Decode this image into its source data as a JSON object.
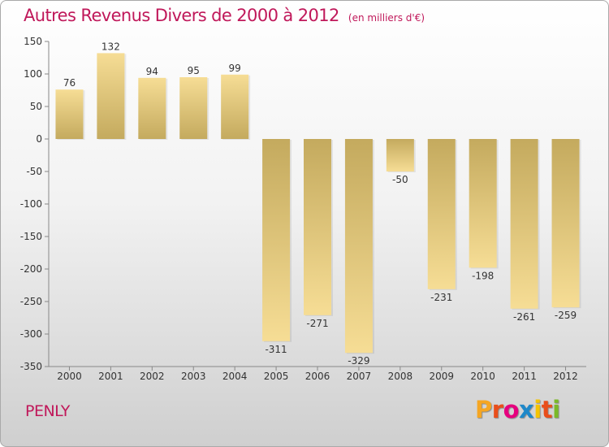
{
  "header": {
    "title": "Autres Revenus Divers de 2000 à 2012",
    "unit": "(en milliers d'€)"
  },
  "footer": {
    "commune": "PENLY",
    "brand": {
      "letters": [
        "P",
        "r",
        "o",
        "x",
        "i",
        "t",
        "i"
      ],
      "colors": [
        "#f5a623",
        "#e94e1b",
        "#e6007e",
        "#1e88c9",
        "#f5c400",
        "#e94e1b",
        "#7ab928"
      ]
    }
  },
  "chart_data": {
    "type": "bar",
    "title": "Autres Revenus Divers de 2000 à 2012",
    "xlabel": "",
    "ylabel": "",
    "categories": [
      "2000",
      "2001",
      "2002",
      "2003",
      "2004",
      "2005",
      "2006",
      "2007",
      "2008",
      "2009",
      "2010",
      "2011",
      "2012"
    ],
    "values": [
      76,
      132,
      94,
      95,
      99,
      -311,
      -271,
      -329,
      -50,
      -231,
      -198,
      -261,
      -259
    ],
    "labels": [
      "76",
      "132",
      "94",
      "95",
      "99",
      "-311",
      "-271",
      "-329",
      "-50",
      "-231",
      "-198",
      "-261",
      "-259"
    ],
    "ylim": [
      -350,
      150
    ],
    "yticks": [
      150,
      100,
      50,
      0,
      -50,
      -100,
      -150,
      -200,
      -250,
      -300,
      -350
    ],
    "grid": false,
    "colors": {
      "bar_dark": "#c4aa5e",
      "bar_light": "#f6dd95",
      "axis": "#888888"
    }
  }
}
